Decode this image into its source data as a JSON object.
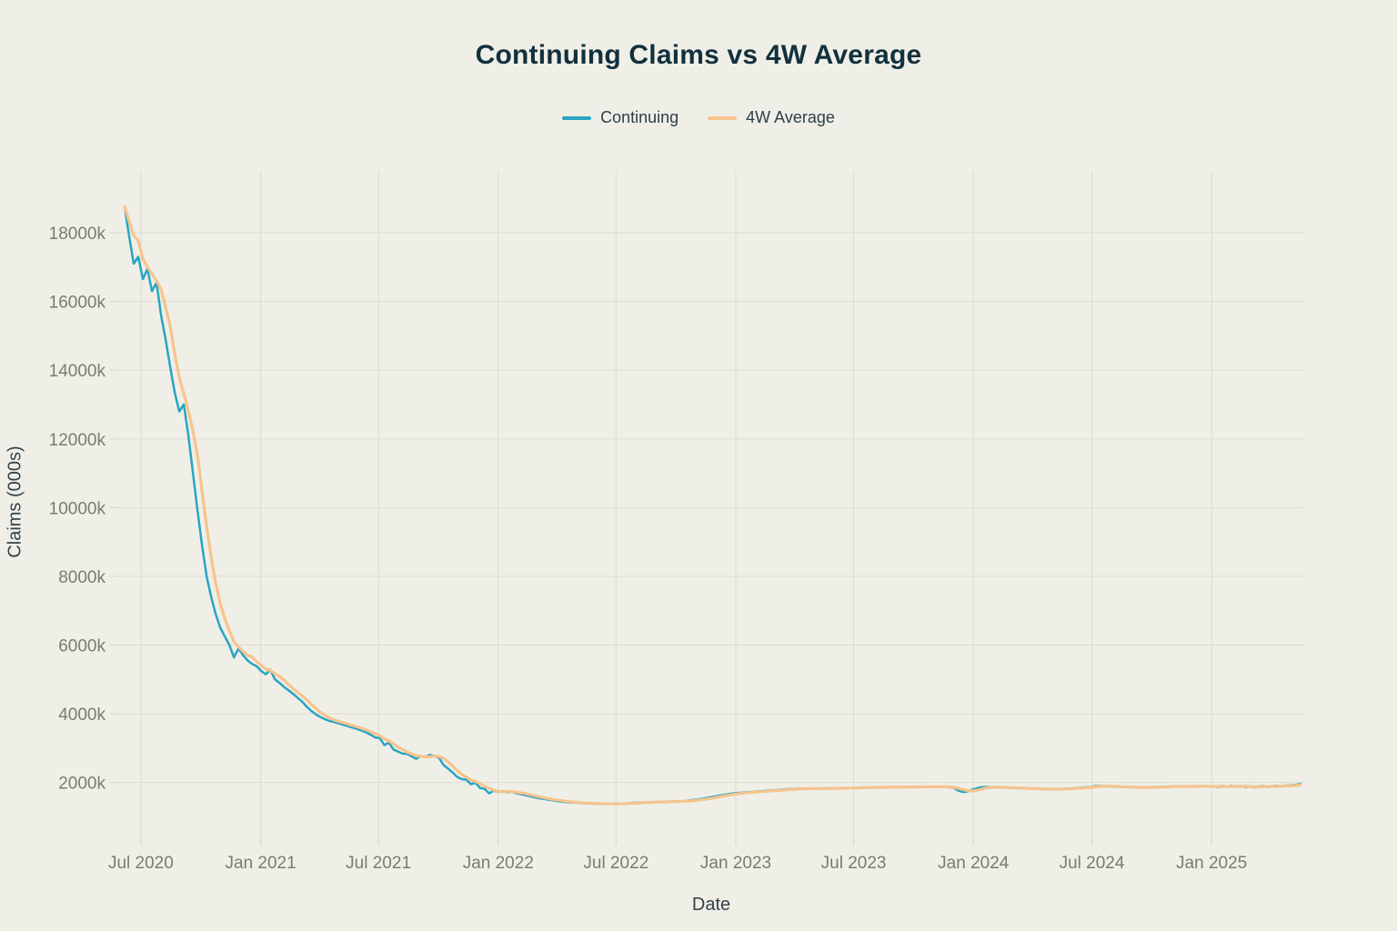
{
  "chart_data": {
    "type": "line",
    "title": "Continuing Claims vs 4W Average",
    "xlabel": "Date",
    "ylabel": "Claims (000s)",
    "units": "thousands of claims (k)",
    "grid": true,
    "legend_position": "top-center",
    "background_color": "#f0efe7",
    "grid_color": "#dcdbd3",
    "tick_label_color": "#7c7b73",
    "title_color": "#12303e",
    "axis_title_color": "#32424b",
    "x_start_date": "2020-06-06",
    "x_frequency": "weekly",
    "xlim_weeks": [
      -1.4,
      258.9
    ],
    "ylim": [
      350,
      19800
    ],
    "yticks": [
      {
        "value": 2000,
        "label": "2000k"
      },
      {
        "value": 4000,
        "label": "4000k"
      },
      {
        "value": 6000,
        "label": "6000k"
      },
      {
        "value": 8000,
        "label": "8000k"
      },
      {
        "value": 10000,
        "label": "10000k"
      },
      {
        "value": 12000,
        "label": "12000k"
      },
      {
        "value": 14000,
        "label": "14000k"
      },
      {
        "value": 16000,
        "label": "16000k"
      },
      {
        "value": 18000,
        "label": "18000k"
      }
    ],
    "xticks": [
      {
        "week": 3.57,
        "label": "Jul 2020"
      },
      {
        "week": 29.86,
        "label": "Jan 2021"
      },
      {
        "week": 55.71,
        "label": "Jul 2021"
      },
      {
        "week": 82.0,
        "label": "Jan 2022"
      },
      {
        "week": 107.86,
        "label": "Jul 2022"
      },
      {
        "week": 134.14,
        "label": "Jan 2023"
      },
      {
        "week": 160.0,
        "label": "Jul 2023"
      },
      {
        "week": 186.29,
        "label": "Jan 2024"
      },
      {
        "week": 212.29,
        "label": "Jul 2024"
      },
      {
        "week": 238.57,
        "label": "Jan 2025"
      }
    ],
    "series": [
      {
        "name": "Continuing",
        "color": "#28a5c2",
        "line_width": 2.5,
        "values": [
          18760,
          17900,
          17100,
          17300,
          16650,
          16950,
          16300,
          16550,
          15600,
          14900,
          14100,
          13350,
          12800,
          13000,
          12100,
          11000,
          9900,
          8900,
          8000,
          7400,
          6900,
          6500,
          6250,
          6000,
          5640,
          5900,
          5700,
          5550,
          5450,
          5380,
          5240,
          5150,
          5280,
          5000,
          4900,
          4780,
          4680,
          4580,
          4460,
          4350,
          4200,
          4080,
          3980,
          3900,
          3840,
          3790,
          3760,
          3720,
          3680,
          3640,
          3600,
          3560,
          3510,
          3460,
          3390,
          3310,
          3290,
          3090,
          3160,
          2960,
          2900,
          2840,
          2830,
          2760,
          2690,
          2770,
          2740,
          2800,
          2770,
          2720,
          2510,
          2400,
          2290,
          2160,
          2100,
          2080,
          1950,
          1990,
          1840,
          1815,
          1680,
          1760,
          1730,
          1750,
          1710,
          1730,
          1690,
          1660,
          1630,
          1600,
          1570,
          1540,
          1520,
          1500,
          1480,
          1460,
          1440,
          1430,
          1420,
          1410,
          1400,
          1395,
          1390,
          1385,
          1380,
          1375,
          1375,
          1380,
          1380,
          1385,
          1390,
          1400,
          1410,
          1415,
          1420,
          1425,
          1430,
          1435,
          1430,
          1440,
          1445,
          1450,
          1455,
          1460,
          1480,
          1495,
          1510,
          1530,
          1555,
          1580,
          1605,
          1630,
          1650,
          1670,
          1690,
          1700,
          1710,
          1720,
          1730,
          1740,
          1750,
          1760,
          1770,
          1780,
          1790,
          1800,
          1810,
          1815,
          1820,
          1825,
          1820,
          1815,
          1820,
          1825,
          1830,
          1835,
          1830,
          1835,
          1840,
          1840,
          1845,
          1850,
          1855,
          1850,
          1855,
          1860,
          1865,
          1860,
          1865,
          1870,
          1865,
          1870,
          1870,
          1875,
          1870,
          1875,
          1880,
          1875,
          1880,
          1875,
          1870,
          1860,
          1840,
          1760,
          1720,
          1740,
          1790,
          1830,
          1860,
          1870,
          1865,
          1860,
          1855,
          1850,
          1845,
          1840,
          1835,
          1830,
          1825,
          1820,
          1815,
          1810,
          1805,
          1800,
          1805,
          1810,
          1815,
          1820,
          1830,
          1840,
          1850,
          1860,
          1870,
          1895,
          1900,
          1895,
          1885,
          1880,
          1875,
          1870,
          1865,
          1860,
          1855,
          1850,
          1855,
          1860,
          1865,
          1870,
          1875,
          1880,
          1885,
          1890,
          1885,
          1880,
          1885,
          1890,
          1895,
          1890,
          1885,
          1890,
          1860,
          1900,
          1870,
          1905,
          1875,
          1895,
          1860,
          1890,
          1855,
          1885,
          1900,
          1865,
          1895,
          1905,
          1880,
          1910,
          1920,
          1930,
          1960
        ]
      },
      {
        "name": "4W Average",
        "color": "#f6c48e",
        "line_width": 3.2,
        "derived_from": "Continuing",
        "transform": "trailing_4_week_mean"
      }
    ]
  }
}
